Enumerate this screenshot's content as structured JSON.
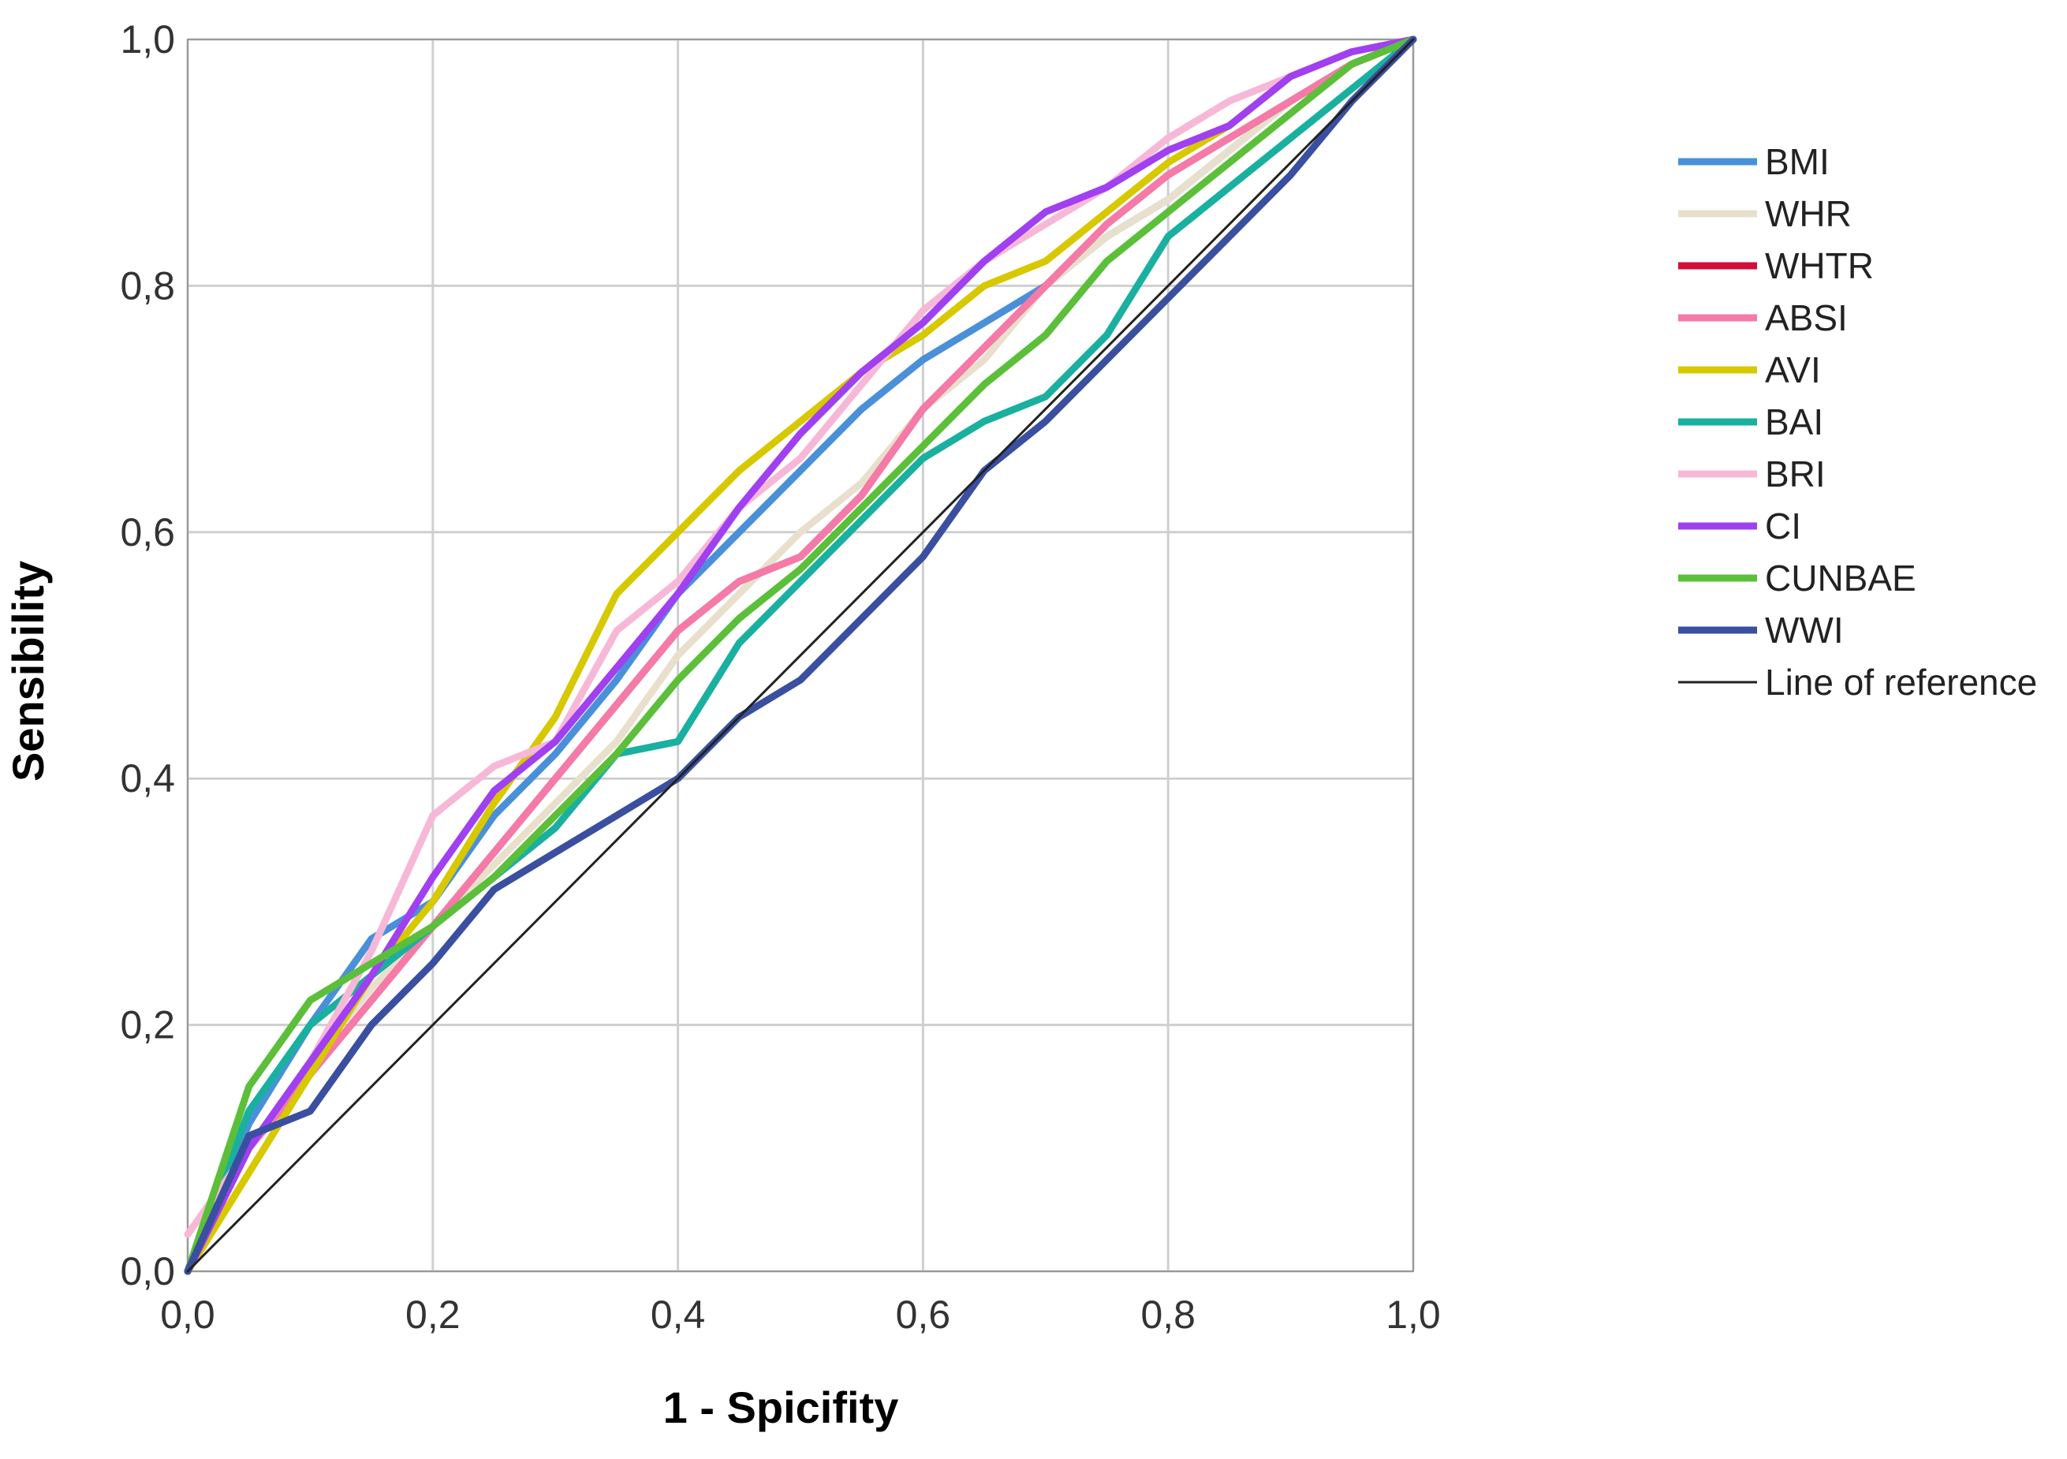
{
  "chart_data": {
    "type": "line",
    "title": "",
    "xlabel": "1 - Spicifity",
    "ylabel": "Sensibility",
    "xlim": [
      0,
      1
    ],
    "ylim": [
      0,
      1
    ],
    "x_ticks": [
      "0,0",
      "0,2",
      "0,4",
      "0,6",
      "0,8",
      "1,0"
    ],
    "y_ticks": [
      "0,0",
      "0,2",
      "0,4",
      "0,6",
      "0,8",
      "1,0"
    ],
    "grid": true,
    "legend_position": "right",
    "series": [
      {
        "name": "BMI",
        "color": "#4a90d9",
        "x": [
          0,
          0.05,
          0.1,
          0.15,
          0.2,
          0.25,
          0.3,
          0.35,
          0.4,
          0.45,
          0.5,
          0.55,
          0.6,
          0.65,
          0.7,
          0.75,
          0.8,
          0.85,
          0.9,
          0.95,
          1.0
        ],
        "y": [
          0,
          0.12,
          0.2,
          0.27,
          0.3,
          0.37,
          0.42,
          0.48,
          0.55,
          0.6,
          0.65,
          0.7,
          0.74,
          0.77,
          0.8,
          0.84,
          0.87,
          0.91,
          0.95,
          0.98,
          1.0
        ]
      },
      {
        "name": "WHR",
        "color": "#e8e0cc",
        "x": [
          0,
          0.05,
          0.1,
          0.15,
          0.2,
          0.25,
          0.3,
          0.35,
          0.4,
          0.45,
          0.5,
          0.55,
          0.6,
          0.65,
          0.7,
          0.75,
          0.8,
          0.85,
          0.9,
          0.95,
          1.0
        ],
        "y": [
          0,
          0.1,
          0.17,
          0.23,
          0.28,
          0.33,
          0.38,
          0.43,
          0.5,
          0.55,
          0.6,
          0.64,
          0.7,
          0.74,
          0.8,
          0.84,
          0.87,
          0.91,
          0.95,
          0.98,
          1.0
        ]
      },
      {
        "name": "WHTR",
        "color": "#d0103a",
        "x": [
          0,
          0.05,
          0.1,
          0.15,
          0.2,
          0.25,
          0.3,
          0.35,
          0.4,
          0.45,
          0.5,
          0.55,
          0.6,
          0.65,
          0.7,
          0.75,
          0.8,
          0.85,
          0.9,
          0.95,
          1.0
        ],
        "y": [
          0,
          0.1,
          0.16,
          0.22,
          0.28,
          0.34,
          0.4,
          0.46,
          0.52,
          0.56,
          0.58,
          0.63,
          0.7,
          0.75,
          0.8,
          0.85,
          0.89,
          0.92,
          0.95,
          0.98,
          1.0
        ]
      },
      {
        "name": "ABSI",
        "color": "#f57aa8",
        "x": [
          0,
          0.05,
          0.1,
          0.15,
          0.2,
          0.25,
          0.3,
          0.35,
          0.4,
          0.45,
          0.5,
          0.55,
          0.6,
          0.65,
          0.7,
          0.75,
          0.8,
          0.85,
          0.9,
          0.95,
          1.0
        ],
        "y": [
          0,
          0.1,
          0.16,
          0.22,
          0.28,
          0.34,
          0.4,
          0.46,
          0.52,
          0.56,
          0.58,
          0.63,
          0.7,
          0.75,
          0.8,
          0.85,
          0.89,
          0.92,
          0.95,
          0.98,
          1.0
        ]
      },
      {
        "name": "AVI",
        "color": "#d8c800",
        "x": [
          0,
          0.05,
          0.1,
          0.15,
          0.2,
          0.25,
          0.3,
          0.35,
          0.4,
          0.45,
          0.5,
          0.55,
          0.6,
          0.65,
          0.7,
          0.75,
          0.8,
          0.85,
          0.9,
          0.95,
          1.0
        ],
        "y": [
          0,
          0.08,
          0.16,
          0.24,
          0.3,
          0.38,
          0.45,
          0.55,
          0.6,
          0.65,
          0.69,
          0.73,
          0.76,
          0.8,
          0.82,
          0.86,
          0.9,
          0.93,
          0.97,
          0.99,
          1.0
        ]
      },
      {
        "name": "BAI",
        "color": "#1ab0a0",
        "x": [
          0,
          0.05,
          0.1,
          0.15,
          0.2,
          0.25,
          0.3,
          0.35,
          0.4,
          0.45,
          0.5,
          0.55,
          0.6,
          0.65,
          0.7,
          0.75,
          0.8,
          0.85,
          0.9,
          0.95,
          1.0
        ],
        "y": [
          0,
          0.13,
          0.2,
          0.24,
          0.28,
          0.32,
          0.36,
          0.42,
          0.43,
          0.51,
          0.56,
          0.61,
          0.66,
          0.69,
          0.71,
          0.76,
          0.84,
          0.88,
          0.92,
          0.96,
          1.0
        ]
      },
      {
        "name": "BRI",
        "color": "#f7b8d8",
        "x": [
          0,
          0.05,
          0.1,
          0.15,
          0.2,
          0.25,
          0.3,
          0.35,
          0.4,
          0.45,
          0.5,
          0.55,
          0.6,
          0.65,
          0.7,
          0.75,
          0.8,
          0.85,
          0.9,
          0.95,
          1.0
        ],
        "y": [
          0.03,
          0.1,
          0.17,
          0.26,
          0.37,
          0.41,
          0.43,
          0.52,
          0.56,
          0.62,
          0.66,
          0.72,
          0.78,
          0.82,
          0.85,
          0.88,
          0.92,
          0.95,
          0.97,
          0.99,
          1.0
        ]
      },
      {
        "name": "CI",
        "color": "#a040f0",
        "x": [
          0,
          0.05,
          0.1,
          0.15,
          0.2,
          0.25,
          0.3,
          0.35,
          0.4,
          0.45,
          0.5,
          0.55,
          0.6,
          0.65,
          0.7,
          0.75,
          0.8,
          0.85,
          0.9,
          0.95,
          1.0
        ],
        "y": [
          0,
          0.1,
          0.17,
          0.24,
          0.32,
          0.39,
          0.43,
          0.49,
          0.55,
          0.62,
          0.68,
          0.73,
          0.77,
          0.82,
          0.86,
          0.88,
          0.91,
          0.93,
          0.97,
          0.99,
          1.0
        ]
      },
      {
        "name": "CUNBAE",
        "color": "#5cbf3a",
        "x": [
          0,
          0.05,
          0.1,
          0.15,
          0.2,
          0.25,
          0.3,
          0.35,
          0.4,
          0.45,
          0.5,
          0.55,
          0.6,
          0.65,
          0.7,
          0.75,
          0.8,
          0.85,
          0.9,
          0.95,
          1.0
        ],
        "y": [
          0,
          0.15,
          0.22,
          0.25,
          0.28,
          0.32,
          0.37,
          0.42,
          0.48,
          0.53,
          0.57,
          0.62,
          0.67,
          0.72,
          0.76,
          0.82,
          0.86,
          0.9,
          0.94,
          0.98,
          1.0
        ]
      },
      {
        "name": "WWI",
        "color": "#3a4fa0",
        "x": [
          0,
          0.05,
          0.1,
          0.15,
          0.2,
          0.25,
          0.3,
          0.35,
          0.4,
          0.45,
          0.5,
          0.55,
          0.6,
          0.65,
          0.7,
          0.75,
          0.8,
          0.85,
          0.9,
          0.95,
          1.0
        ],
        "y": [
          0,
          0.11,
          0.13,
          0.2,
          0.25,
          0.31,
          0.34,
          0.37,
          0.4,
          0.45,
          0.48,
          0.53,
          0.58,
          0.65,
          0.69,
          0.74,
          0.79,
          0.84,
          0.89,
          0.95,
          1.0
        ]
      },
      {
        "name": "Line of reference",
        "color": "#222222",
        "reference": true,
        "x": [
          0,
          1
        ],
        "y": [
          0,
          1
        ]
      }
    ]
  }
}
